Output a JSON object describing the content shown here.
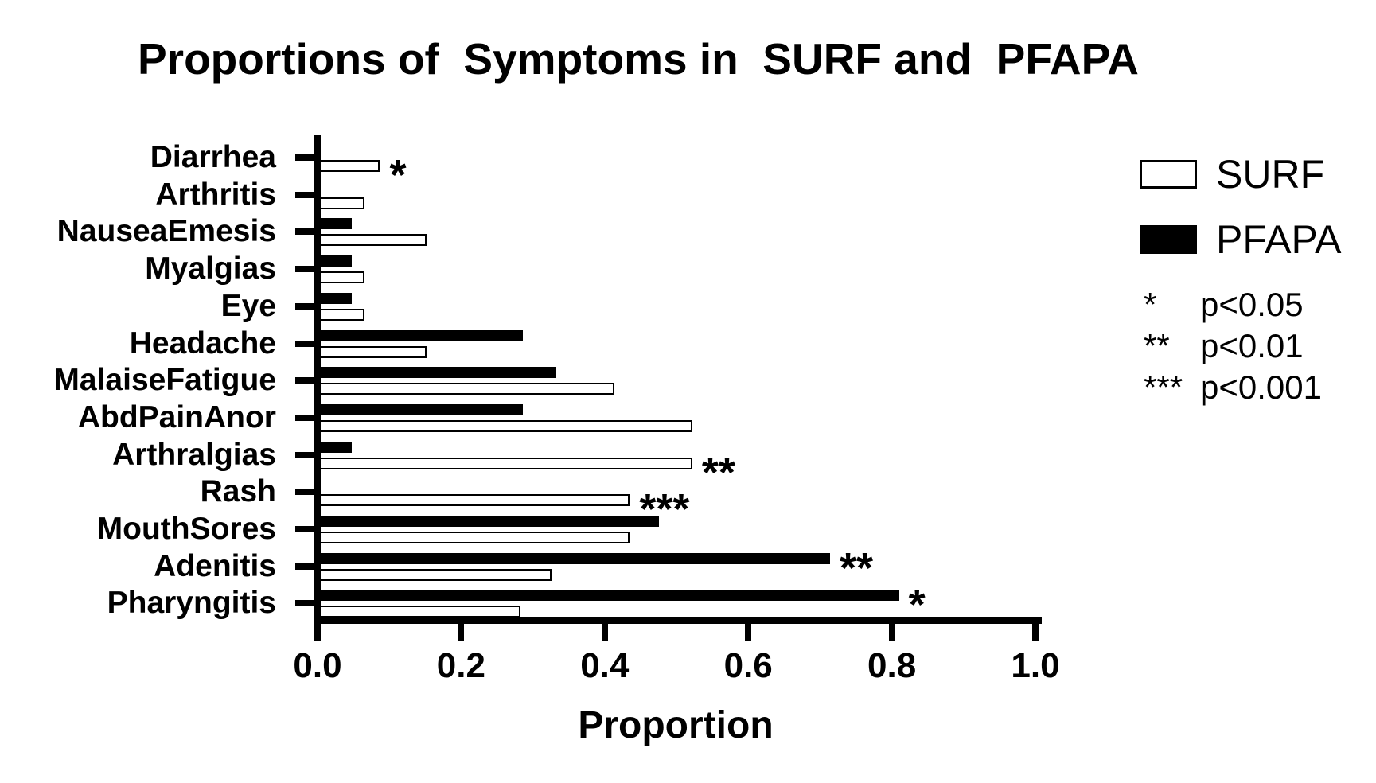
{
  "chart_data": {
    "type": "bar",
    "orientation": "horizontal",
    "title": "Proportions of  Symptoms in  SURF and  PFAPA",
    "xlabel": "Proportion",
    "xlim": [
      0.0,
      1.0
    ],
    "xticks": [
      0.0,
      0.2,
      0.4,
      0.6,
      0.8,
      1.0
    ],
    "xtick_labels": [
      "0.0",
      "0.2",
      "0.4",
      "0.6",
      "0.8",
      "1.0"
    ],
    "grid": false,
    "legend_position": "upper right",
    "categories_top_to_bottom": [
      "Diarrhea",
      "Arthritis",
      "NauseaEmesis",
      "Myalgias",
      "Eye",
      "Headache",
      "MalaiseFatigue",
      "AbdPainAnor",
      "Arthralgias",
      "Rash",
      "MouthSores",
      "Adenitis",
      "Pharyngitis"
    ],
    "series": [
      {
        "name": "PFAPA",
        "fill": "#000000",
        "border": "#000000",
        "position_in_group": "top",
        "values": [
          0,
          0,
          0.048,
          0.048,
          0.048,
          0.286,
          0.333,
          0.286,
          0.048,
          0,
          0.476,
          0.714,
          0.81
        ]
      },
      {
        "name": "SURF",
        "fill": "#ffffff",
        "border": "#000000",
        "position_in_group": "bottom",
        "values": [
          0.087,
          0.065,
          0.152,
          0.065,
          0.065,
          0.152,
          0.413,
          0.522,
          0.522,
          0.435,
          0.435,
          0.326,
          0.283
        ]
      }
    ],
    "significance_markers": [
      {
        "category": "Diarrhea",
        "marker": "*",
        "on_series": "SURF"
      },
      {
        "category": "Arthralgias",
        "marker": "**",
        "on_series": "SURF"
      },
      {
        "category": "Rash",
        "marker": "***",
        "on_series": "SURF"
      },
      {
        "category": "Adenitis",
        "marker": "**",
        "on_series": "PFAPA"
      },
      {
        "category": "Pharyngitis",
        "marker": "*",
        "on_series": "PFAPA"
      }
    ],
    "legend": [
      {
        "label": "SURF",
        "fill": "#ffffff"
      },
      {
        "label": "PFAPA",
        "fill": "#000000"
      }
    ],
    "sig_key": [
      {
        "symbol": "*",
        "meaning": "p<0.05"
      },
      {
        "symbol": "**",
        "meaning": "p<0.01"
      },
      {
        "symbol": "***",
        "meaning": "p<0.001"
      }
    ],
    "colors": {
      "foreground": "#000000",
      "background": "#ffffff"
    }
  }
}
